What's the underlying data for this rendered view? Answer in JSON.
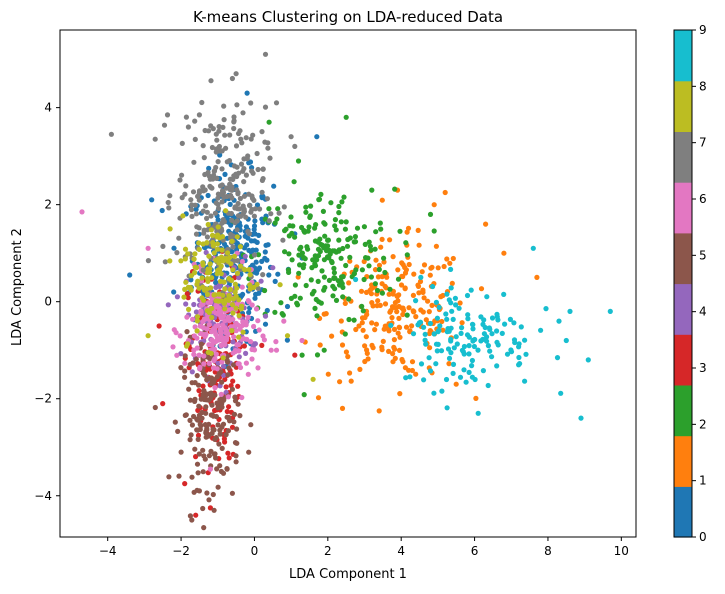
{
  "chart_data": {
    "type": "scatter",
    "title": "K-means Clustering on LDA-reduced Data",
    "xlabel": "LDA Component 1",
    "ylabel": "LDA Component 2",
    "xlim": [
      -5.3,
      10.4
    ],
    "ylim": [
      -4.85,
      5.6
    ],
    "xticks": [
      -4,
      -2,
      0,
      2,
      4,
      6,
      8,
      10
    ],
    "yticks": [
      -4,
      -2,
      0,
      2,
      4
    ],
    "grid": false,
    "colorbar": {
      "label": "",
      "ticks": [
        0,
        1,
        2,
        3,
        4,
        5,
        6,
        7,
        8,
        9
      ],
      "colormap": "tab10",
      "colors": [
        "#1f77b4",
        "#ff7f0e",
        "#2ca02c",
        "#d62728",
        "#9467bd",
        "#8c564b",
        "#e377c2",
        "#7f7f7f",
        "#bcbd22",
        "#17becf"
      ]
    },
    "clusters": [
      {
        "label": 0,
        "center": [
          -0.6,
          0.9
        ],
        "spread": [
          0.55,
          0.85
        ],
        "count": 300,
        "extra_points": [
          [
            -2.8,
            2.1
          ],
          [
            -3.4,
            0.55
          ],
          [
            1.7,
            3.4
          ],
          [
            -0.2,
            4.3
          ],
          [
            1.1,
            1.4
          ],
          [
            -2.2,
            0.2
          ],
          [
            0.9,
            -0.1
          ],
          [
            1.3,
            0.9
          ]
        ]
      },
      {
        "label": 1,
        "center": [
          3.9,
          -0.2
        ],
        "spread": [
          0.95,
          0.7
        ],
        "count": 220,
        "extra_points": [
          [
            5.2,
            2.25
          ],
          [
            6.3,
            1.6
          ],
          [
            7.7,
            0.5
          ],
          [
            2.4,
            -2.2
          ],
          [
            3.4,
            -2.25
          ],
          [
            5.5,
            -1.7
          ],
          [
            3.9,
            2.3
          ],
          [
            6.8,
            1.0
          ],
          [
            4.9,
            2.0
          ]
        ]
      },
      {
        "label": 2,
        "center": [
          1.9,
          0.9
        ],
        "spread": [
          0.95,
          0.7
        ],
        "count": 200,
        "extra_points": [
          [
            2.5,
            3.8
          ],
          [
            0.4,
            3.7
          ],
          [
            1.2,
            2.9
          ],
          [
            1.3,
            -1.1
          ],
          [
            1.9,
            -1.0
          ],
          [
            4.8,
            1.8
          ],
          [
            3.2,
            2.3
          ]
        ]
      },
      {
        "label": 3,
        "center": [
          -1.1,
          -1.3
        ],
        "spread": [
          0.35,
          1.0
        ],
        "count": 160,
        "extra_points": [
          [
            -2.6,
            -0.5
          ],
          [
            -1.9,
            -3.75
          ],
          [
            -1.2,
            -4.25
          ],
          [
            -2.5,
            -2.1
          ],
          [
            -1.6,
            -4.4
          ],
          [
            1.1,
            -1.1
          ],
          [
            0.2,
            -0.9
          ]
        ]
      },
      {
        "label": 4,
        "center": [
          -1.0,
          -0.3
        ],
        "spread": [
          0.45,
          0.6
        ],
        "count": 120,
        "extra_points": [
          [
            0.3,
            -0.3
          ],
          [
            -2.1,
            0.1
          ],
          [
            0.5,
            0.7
          ]
        ]
      },
      {
        "label": 5,
        "center": [
          -1.2,
          -2.3
        ],
        "spread": [
          0.4,
          0.75
        ],
        "count": 180,
        "extra_points": [
          [
            -0.9,
            -3.5
          ],
          [
            -1.5,
            -3.9
          ],
          [
            -0.6,
            -3.95
          ],
          [
            -1.1,
            -4.3
          ],
          [
            -2.0,
            -3.1
          ],
          [
            -0.5,
            -3.3
          ]
        ]
      },
      {
        "label": 6,
        "center": [
          -0.9,
          -0.6
        ],
        "spread": [
          0.5,
          0.55
        ],
        "count": 200,
        "extra_points": [
          [
            -4.7,
            1.85
          ],
          [
            -2.9,
            1.1
          ],
          [
            0.6,
            -1.0
          ],
          [
            0.8,
            -0.4
          ],
          [
            -1.2,
            -3.45
          ],
          [
            1.3,
            -0.8
          ]
        ]
      },
      {
        "label": 7,
        "center": [
          -0.9,
          2.2
        ],
        "spread": [
          0.6,
          0.9
        ],
        "count": 260,
        "extra_points": [
          [
            -3.9,
            3.45
          ],
          [
            0.3,
            5.1
          ],
          [
            -0.5,
            4.7
          ],
          [
            -0.6,
            4.6
          ],
          [
            1.0,
            3.4
          ],
          [
            1.1,
            3.2
          ],
          [
            0.6,
            4.1
          ],
          [
            -1.5,
            3.85
          ],
          [
            -1.8,
            3.6
          ]
        ]
      },
      {
        "label": 8,
        "center": [
          -1.0,
          0.5
        ],
        "spread": [
          0.5,
          0.65
        ],
        "count": 140,
        "extra_points": [
          [
            -2.9,
            -0.7
          ],
          [
            0.7,
            0.35
          ],
          [
            1.6,
            -1.6
          ],
          [
            -2.3,
            1.5
          ],
          [
            0.9,
            -0.7
          ]
        ]
      },
      {
        "label": 9,
        "center": [
          5.8,
          -0.7
        ],
        "spread": [
          0.9,
          0.55
        ],
        "count": 140,
        "extra_points": [
          [
            9.7,
            -0.2
          ],
          [
            9.1,
            -1.2
          ],
          [
            8.6,
            -0.2
          ],
          [
            8.9,
            -2.4
          ],
          [
            8.3,
            -0.4
          ],
          [
            7.6,
            1.1
          ],
          [
            7.2,
            -1.3
          ],
          [
            6.1,
            -2.3
          ],
          [
            8.5,
            -0.8
          ]
        ]
      }
    ]
  }
}
